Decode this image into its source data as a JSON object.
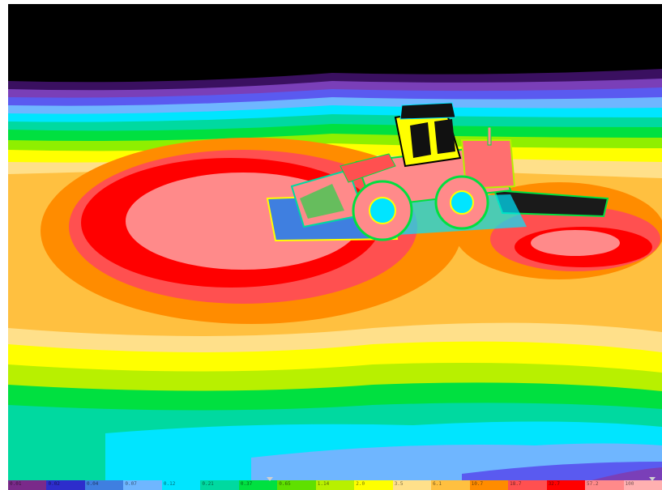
{
  "viewport": {
    "background": "#000000",
    "subject_icon": "wheel-loader-model",
    "band_colors": [
      "#4a1a6e",
      "#7a3fb8",
      "#2d2dcc",
      "#3f7fe0",
      "#6fb6ff",
      "#00e5ff",
      "#00d9a0",
      "#00e040",
      "#5fe000",
      "#b8f000",
      "#ffff00",
      "#ffe08a",
      "#ffc040",
      "#ff8c00",
      "#ff5050",
      "#ff0000",
      "#ff8a8a"
    ]
  },
  "legend": {
    "colors": [
      "#7a2a8a",
      "#2d2dcc",
      "#3f7fe0",
      "#6fb6ff",
      "#00e5ff",
      "#00d9a0",
      "#00e040",
      "#5fe000",
      "#b8f000",
      "#ffff00",
      "#ffe08a",
      "#ffc040",
      "#ff8c00",
      "#ff5050",
      "#ff0000",
      "#ff8a8a",
      "#ffb0b0"
    ],
    "labels": [
      "0.01",
      "0.02",
      "0.04",
      "0.07",
      "0.12",
      "0.21",
      "0.37",
      "0.65",
      "1.14",
      "2.0",
      "3.5",
      "6.1",
      "10.7",
      "18.7",
      "32.7",
      "57.2",
      "100"
    ]
  }
}
